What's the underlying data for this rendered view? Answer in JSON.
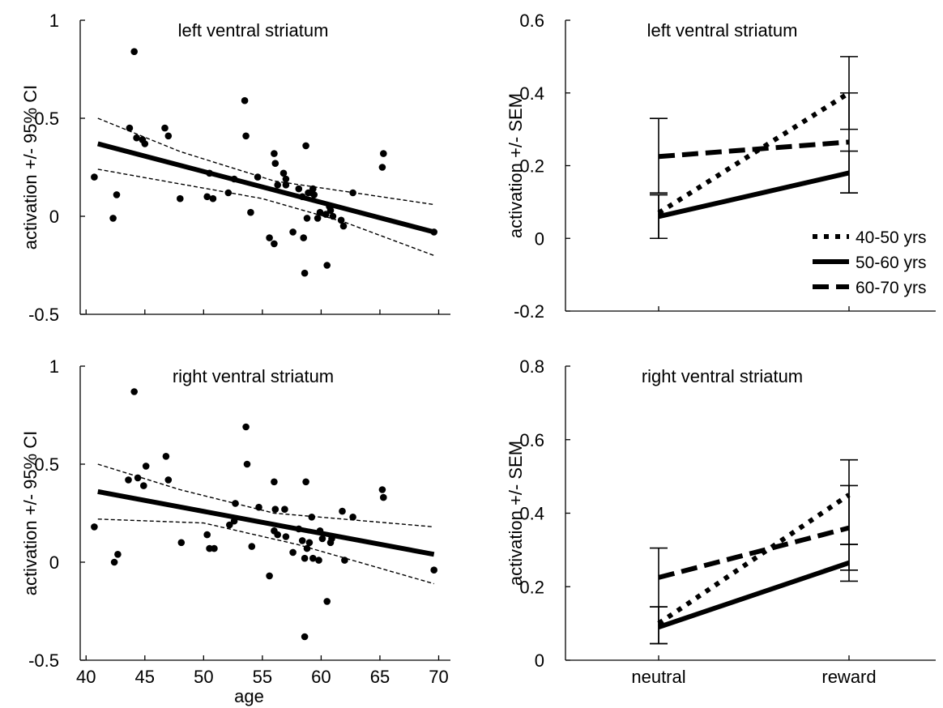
{
  "chart_data": [
    {
      "type": "scatter",
      "title": "left ventral striatum",
      "xlabel": "",
      "ylabel": "activation +/- 95% CI",
      "xlim": [
        39.5,
        71
      ],
      "ylim": [
        -0.5,
        1
      ],
      "yticks": [
        "-0.5",
        "0",
        "0.5",
        "1"
      ],
      "xticks": [],
      "points": [
        [
          40.7,
          0.2
        ],
        [
          42.3,
          -0.01
        ],
        [
          42.6,
          0.11
        ],
        [
          43.7,
          0.45
        ],
        [
          44.1,
          0.84
        ],
        [
          44.3,
          0.4
        ],
        [
          44.8,
          0.39
        ],
        [
          45.0,
          0.37
        ],
        [
          46.7,
          0.45
        ],
        [
          47.0,
          0.41
        ],
        [
          48.0,
          0.09
        ],
        [
          50.3,
          0.1
        ],
        [
          50.5,
          0.22
        ],
        [
          50.8,
          0.09
        ],
        [
          52.1,
          0.12
        ],
        [
          52.6,
          0.19
        ],
        [
          53.5,
          0.59
        ],
        [
          53.6,
          0.41
        ],
        [
          54.0,
          0.02
        ],
        [
          54.6,
          0.2
        ],
        [
          55.6,
          -0.11
        ],
        [
          56.0,
          0.32
        ],
        [
          56.0,
          -0.14
        ],
        [
          56.1,
          0.27
        ],
        [
          56.3,
          0.16
        ],
        [
          56.8,
          0.22
        ],
        [
          57.0,
          0.19
        ],
        [
          57.0,
          0.16
        ],
        [
          57.6,
          -0.08
        ],
        [
          58.1,
          0.14
        ],
        [
          58.4,
          0.1
        ],
        [
          58.5,
          -0.11
        ],
        [
          58.6,
          -0.29
        ],
        [
          58.7,
          0.36
        ],
        [
          58.8,
          -0.01
        ],
        [
          58.9,
          0.12
        ],
        [
          59.2,
          0.12
        ],
        [
          59.3,
          0.14
        ],
        [
          59.4,
          0.11
        ],
        [
          59.7,
          -0.01
        ],
        [
          59.9,
          0.02
        ],
        [
          60.4,
          0.01
        ],
        [
          60.5,
          -0.25
        ],
        [
          60.7,
          0.05
        ],
        [
          60.8,
          0.03
        ],
        [
          61.0,
          0.0
        ],
        [
          61.7,
          -0.02
        ],
        [
          61.9,
          -0.05
        ],
        [
          62.7,
          0.12
        ],
        [
          65.2,
          0.25
        ],
        [
          65.3,
          0.32
        ],
        [
          69.6,
          -0.08
        ]
      ],
      "fit_line": [
        [
          41,
          0.37
        ],
        [
          69.6,
          -0.08
        ]
      ],
      "ci_lower": [
        [
          41,
          0.24
        ],
        [
          55,
          0.09
        ],
        [
          62,
          -0.03
        ],
        [
          69.6,
          -0.2
        ]
      ],
      "ci_upper": [
        [
          41,
          0.5
        ],
        [
          48,
          0.33
        ],
        [
          56,
          0.18
        ],
        [
          69.6,
          0.06
        ]
      ]
    },
    {
      "type": "line",
      "title": "left ventral striatum",
      "xlabel": "",
      "ylabel": "activation +/- SEM",
      "categories": [
        "neutral",
        "reward"
      ],
      "ylim": [
        -0.2,
        0.6
      ],
      "yticks": [
        "-0.2",
        "0",
        "0.2",
        "0.4",
        "0.6"
      ],
      "legend": "lower-right",
      "series": [
        {
          "name": "40-50 yrs",
          "style": "dotted",
          "values": [
            0.07,
            0.4
          ],
          "sem_low": [
            0.0,
            0.3
          ],
          "sem_high": [
            0.12,
            0.5
          ]
        },
        {
          "name": "50-60 yrs",
          "style": "solid",
          "values": [
            0.06,
            0.18
          ],
          "sem_low": [
            0.0,
            0.125
          ],
          "sem_high": [
            0.12,
            0.24
          ]
        },
        {
          "name": "60-70 yrs",
          "style": "dashed",
          "values": [
            0.225,
            0.265
          ],
          "sem_low": [
            0.125,
            0.125
          ],
          "sem_high": [
            0.33,
            0.4
          ]
        }
      ]
    },
    {
      "type": "scatter",
      "title": "right ventral striatum",
      "xlabel": "age",
      "ylabel": "activation +/- 95% CI",
      "xlim": [
        39.5,
        71
      ],
      "ylim": [
        -0.5,
        1
      ],
      "yticks": [
        "-0.5",
        "0",
        "0.5",
        "1"
      ],
      "xticks": [
        "40",
        "45",
        "50",
        "55",
        "60",
        "65",
        "70"
      ],
      "points": [
        [
          40.7,
          0.18
        ],
        [
          42.4,
          0.0
        ],
        [
          42.7,
          0.04
        ],
        [
          43.6,
          0.42
        ],
        [
          44.1,
          0.87
        ],
        [
          44.4,
          0.43
        ],
        [
          44.9,
          0.39
        ],
        [
          45.1,
          0.49
        ],
        [
          46.8,
          0.54
        ],
        [
          47.0,
          0.42
        ],
        [
          48.1,
          0.1
        ],
        [
          50.3,
          0.14
        ],
        [
          50.5,
          0.07
        ],
        [
          50.9,
          0.07
        ],
        [
          52.2,
          0.19
        ],
        [
          52.7,
          0.3
        ],
        [
          52.6,
          0.21
        ],
        [
          53.6,
          0.69
        ],
        [
          53.7,
          0.5
        ],
        [
          54.1,
          0.08
        ],
        [
          54.7,
          0.28
        ],
        [
          55.6,
          -0.07
        ],
        [
          56.0,
          0.41
        ],
        [
          56.1,
          0.27
        ],
        [
          56.0,
          0.16
        ],
        [
          56.3,
          0.14
        ],
        [
          56.9,
          0.27
        ],
        [
          57.0,
          0.13
        ],
        [
          57.6,
          0.05
        ],
        [
          58.1,
          0.17
        ],
        [
          58.4,
          0.11
        ],
        [
          58.6,
          0.02
        ],
        [
          58.6,
          -0.38
        ],
        [
          58.7,
          0.41
        ],
        [
          58.8,
          0.07
        ],
        [
          59.0,
          0.1
        ],
        [
          59.2,
          0.23
        ],
        [
          59.3,
          0.02
        ],
        [
          59.8,
          0.01
        ],
        [
          59.9,
          0.16
        ],
        [
          60.1,
          0.12
        ],
        [
          60.5,
          -0.2
        ],
        [
          60.8,
          0.1
        ],
        [
          60.9,
          0.12
        ],
        [
          61.8,
          0.26
        ],
        [
          62.0,
          0.01
        ],
        [
          62.7,
          0.23
        ],
        [
          65.2,
          0.37
        ],
        [
          65.3,
          0.33
        ],
        [
          69.6,
          -0.04
        ]
      ],
      "fit_line": [
        [
          41,
          0.36
        ],
        [
          69.6,
          0.04
        ]
      ],
      "ci_lower": [
        [
          41,
          0.22
        ],
        [
          50,
          0.2
        ],
        [
          58,
          0.09
        ],
        [
          69.6,
          -0.11
        ]
      ],
      "ci_upper": [
        [
          41,
          0.5
        ],
        [
          48,
          0.37
        ],
        [
          56,
          0.25
        ],
        [
          69.6,
          0.18
        ]
      ]
    },
    {
      "type": "line",
      "title": "right ventral striatum",
      "xlabel": "",
      "ylabel": "activation +/- SEM",
      "categories": [
        "neutral",
        "reward"
      ],
      "ylim": [
        0,
        0.8
      ],
      "yticks": [
        "0",
        "0.2",
        "0.4",
        "0.6",
        "0.8"
      ],
      "series": [
        {
          "name": "40-50 yrs",
          "style": "dotted",
          "values": [
            0.1,
            0.45
          ],
          "sem_low": [
            0.045,
            0.315
          ],
          "sem_high": [
            0.145,
            0.545
          ]
        },
        {
          "name": "50-60 yrs",
          "style": "solid",
          "values": [
            0.09,
            0.265
          ],
          "sem_low": [
            0.045,
            0.215
          ],
          "sem_high": [
            0.145,
            0.315
          ]
        },
        {
          "name": "60-70 yrs",
          "style": "dashed",
          "values": [
            0.225,
            0.36
          ],
          "sem_low": [
            0.145,
            0.245
          ],
          "sem_high": [
            0.305,
            0.475
          ]
        }
      ]
    }
  ]
}
